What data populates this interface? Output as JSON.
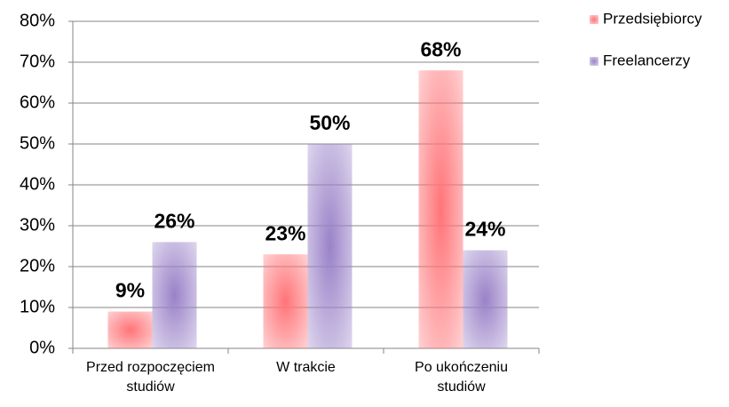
{
  "chart_data": {
    "type": "bar",
    "categories": [
      "Przed rozpoczęciem studiów",
      "W trakcie",
      "Po ukończeniu studiów"
    ],
    "series": [
      {
        "name": "Przedsiębiorcy",
        "color": "#ff7478",
        "values": [
          9,
          23,
          68
        ],
        "value_labels": [
          "9%",
          "23%",
          "68%"
        ]
      },
      {
        "name": "Freelancerzy",
        "color": "#9a82c8",
        "values": [
          26,
          50,
          24
        ],
        "value_labels": [
          "26%",
          "50%",
          "24%"
        ]
      }
    ],
    "ylim": [
      0,
      80
    ],
    "yticks": [
      {
        "value": 0,
        "label": "0%"
      },
      {
        "value": 10,
        "label": "10%"
      },
      {
        "value": 20,
        "label": "20%"
      },
      {
        "value": 30,
        "label": "30%"
      },
      {
        "value": 40,
        "label": "40%"
      },
      {
        "value": 50,
        "label": "50%"
      },
      {
        "value": 60,
        "label": "60%"
      },
      {
        "value": 70,
        "label": "70%"
      },
      {
        "value": 80,
        "label": "80%"
      }
    ],
    "grid": true,
    "legend": "right"
  }
}
